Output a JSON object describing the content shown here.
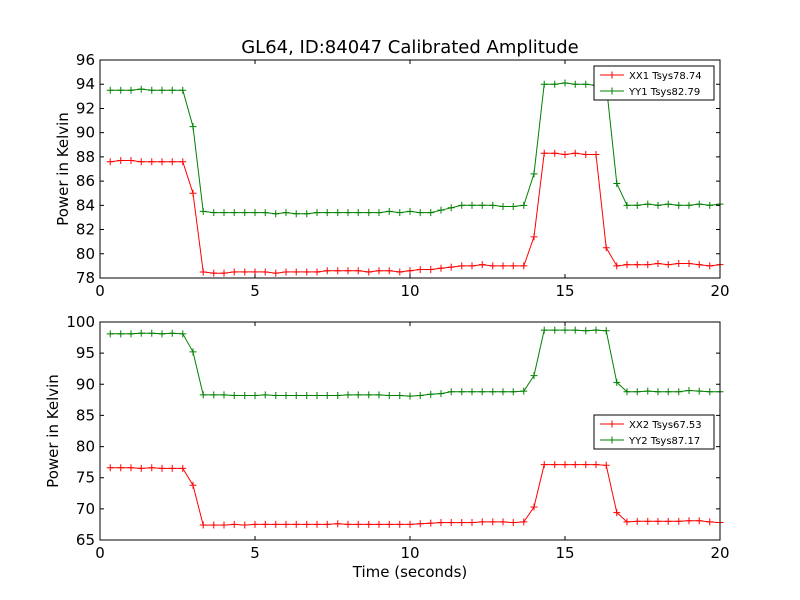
{
  "figure": {
    "title": "GL64, ID:84047 Calibrated Amplitude"
  },
  "chart_data": [
    {
      "type": "line",
      "title": "GL64, ID:84047 Calibrated Amplitude",
      "xlabel": "",
      "ylabel": "Power in Kelvin",
      "xlim": [
        0,
        20
      ],
      "ylim": [
        78,
        96
      ],
      "x_ticks": [
        0,
        5,
        10,
        15,
        20
      ],
      "y_ticks": [
        78,
        80,
        82,
        84,
        86,
        88,
        90,
        92,
        94,
        96
      ],
      "grid": false,
      "legend_position": "top-right",
      "x": [
        0.33,
        0.67,
        1.0,
        1.33,
        1.67,
        2.0,
        2.33,
        2.67,
        3.0,
        3.33,
        3.67,
        4.0,
        4.33,
        4.67,
        5.0,
        5.33,
        5.67,
        6.0,
        6.33,
        6.67,
        7.0,
        7.33,
        7.67,
        8.0,
        8.33,
        8.67,
        9.0,
        9.33,
        9.67,
        10.0,
        10.33,
        10.67,
        11.0,
        11.33,
        11.67,
        12.0,
        12.33,
        12.67,
        13.0,
        13.33,
        13.67,
        14.0,
        14.33,
        14.67,
        15.0,
        15.33,
        15.67,
        16.0,
        16.33,
        16.67,
        17.0,
        17.33,
        17.67,
        18.0,
        18.33,
        18.67,
        19.0,
        19.33,
        19.67,
        20.0
      ],
      "series": [
        {
          "name": "XX1 Tsys78.74",
          "color": "#ff0000",
          "values": [
            87.6,
            87.7,
            87.7,
            87.6,
            87.6,
            87.6,
            87.6,
            87.6,
            85.0,
            78.5,
            78.4,
            78.4,
            78.5,
            78.5,
            78.5,
            78.5,
            78.4,
            78.5,
            78.5,
            78.5,
            78.5,
            78.6,
            78.6,
            78.6,
            78.6,
            78.5,
            78.6,
            78.6,
            78.5,
            78.6,
            78.7,
            78.7,
            78.8,
            78.9,
            79.0,
            79.0,
            79.1,
            79.0,
            79.0,
            79.0,
            79.0,
            81.4,
            88.3,
            88.3,
            88.2,
            88.3,
            88.2,
            88.2,
            80.5,
            79.0,
            79.1,
            79.1,
            79.1,
            79.2,
            79.1,
            79.2,
            79.2,
            79.1,
            79.0,
            79.1
          ]
        },
        {
          "name": "YY1 Tsys82.79",
          "color": "#008000",
          "values": [
            93.5,
            93.5,
            93.5,
            93.6,
            93.5,
            93.5,
            93.5,
            93.5,
            90.5,
            83.5,
            83.4,
            83.4,
            83.4,
            83.4,
            83.4,
            83.4,
            83.3,
            83.4,
            83.3,
            83.3,
            83.4,
            83.4,
            83.4,
            83.4,
            83.4,
            83.4,
            83.4,
            83.5,
            83.4,
            83.5,
            83.4,
            83.4,
            83.6,
            83.8,
            84.0,
            84.0,
            84.0,
            84.0,
            83.9,
            83.9,
            84.0,
            86.6,
            94.0,
            94.0,
            94.1,
            94.0,
            94.0,
            93.9,
            94.0,
            85.8,
            84.0,
            84.0,
            84.1,
            84.0,
            84.1,
            84.0,
            84.0,
            84.1,
            84.0,
            84.1
          ]
        }
      ]
    },
    {
      "type": "line",
      "title": "",
      "xlabel": "Time (seconds)",
      "ylabel": "Power in Kelvin",
      "xlim": [
        0,
        20
      ],
      "ylim": [
        65,
        100
      ],
      "x_ticks": [
        0,
        5,
        10,
        15,
        20
      ],
      "y_ticks": [
        65,
        70,
        75,
        80,
        85,
        90,
        95,
        100
      ],
      "grid": false,
      "legend_position": "right",
      "x": [
        0.33,
        0.67,
        1.0,
        1.33,
        1.67,
        2.0,
        2.33,
        2.67,
        3.0,
        3.33,
        3.67,
        4.0,
        4.33,
        4.67,
        5.0,
        5.33,
        5.67,
        6.0,
        6.33,
        6.67,
        7.0,
        7.33,
        7.67,
        8.0,
        8.33,
        8.67,
        9.0,
        9.33,
        9.67,
        10.0,
        10.33,
        10.67,
        11.0,
        11.33,
        11.67,
        12.0,
        12.33,
        12.67,
        13.0,
        13.33,
        13.67,
        14.0,
        14.33,
        14.67,
        15.0,
        15.33,
        15.67,
        16.0,
        16.33,
        16.67,
        17.0,
        17.33,
        17.67,
        18.0,
        18.33,
        18.67,
        19.0,
        19.33,
        19.67,
        20.0
      ],
      "series": [
        {
          "name": "XX2 Tsys67.53",
          "color": "#ff0000",
          "values": [
            76.6,
            76.6,
            76.6,
            76.5,
            76.6,
            76.5,
            76.5,
            76.5,
            73.8,
            67.4,
            67.4,
            67.4,
            67.5,
            67.4,
            67.5,
            67.5,
            67.5,
            67.5,
            67.5,
            67.5,
            67.5,
            67.5,
            67.6,
            67.5,
            67.5,
            67.5,
            67.5,
            67.5,
            67.5,
            67.5,
            67.6,
            67.7,
            67.8,
            67.8,
            67.8,
            67.8,
            67.9,
            67.9,
            67.9,
            67.8,
            67.9,
            70.3,
            77.1,
            77.1,
            77.1,
            77.1,
            77.1,
            77.1,
            77.0,
            69.4,
            67.9,
            68.0,
            68.0,
            68.0,
            68.0,
            68.0,
            68.1,
            68.1,
            67.9,
            67.8
          ]
        },
        {
          "name": "YY2 Tsys87.17",
          "color": "#008000",
          "values": [
            98.1,
            98.1,
            98.1,
            98.2,
            98.2,
            98.1,
            98.2,
            98.1,
            95.2,
            88.3,
            88.3,
            88.3,
            88.2,
            88.2,
            88.2,
            88.3,
            88.2,
            88.2,
            88.2,
            88.2,
            88.2,
            88.2,
            88.2,
            88.3,
            88.3,
            88.3,
            88.3,
            88.2,
            88.2,
            88.1,
            88.2,
            88.4,
            88.5,
            88.8,
            88.8,
            88.8,
            88.8,
            88.8,
            88.8,
            88.8,
            88.9,
            91.4,
            98.7,
            98.7,
            98.7,
            98.7,
            98.6,
            98.7,
            98.6,
            90.3,
            88.8,
            88.8,
            88.9,
            88.8,
            88.8,
            88.8,
            89.0,
            88.9,
            88.8,
            88.8
          ]
        }
      ]
    }
  ]
}
